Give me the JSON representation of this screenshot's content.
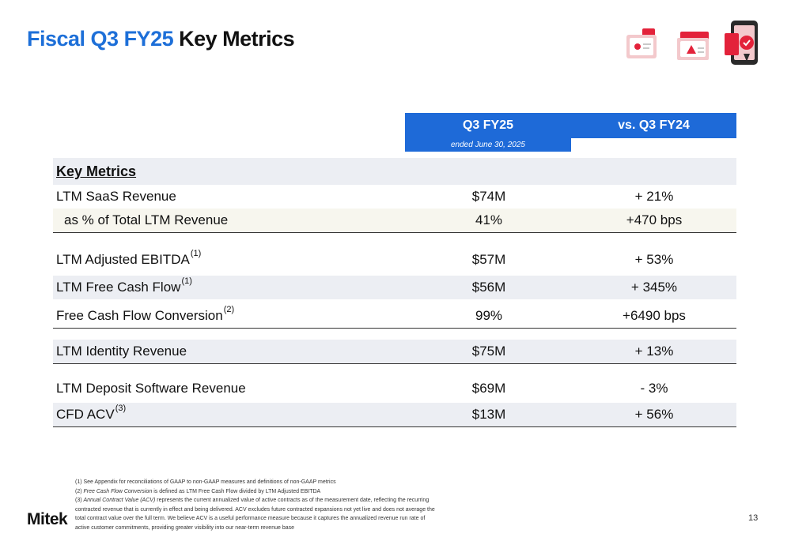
{
  "header": {
    "title_accent": "Fiscal Q3 FY25",
    "title_rest": "Key Metrics",
    "accent_color": "#1d6fd8"
  },
  "icons": [
    "id-card-icon",
    "alert-document-icon",
    "phone-security-icon"
  ],
  "table": {
    "col1_header": "Q3 FY25",
    "col1_subheader": "ended June 30, 2025",
    "col2_header": "vs. Q3 FY24",
    "section_header": "Key Metrics",
    "rows": [
      {
        "label": "LTM SaaS Revenue",
        "sup": "",
        "value": "$74M",
        "change": "+ 21%"
      },
      {
        "label": "  as % of Total LTM Revenue",
        "sup": "",
        "value": "41%",
        "change": "+470 bps"
      },
      {
        "label": "LTM Adjusted EBITDA",
        "sup": "(1)",
        "value": "$57M",
        "change": "+ 53%"
      },
      {
        "label": "LTM Free Cash Flow",
        "sup": "(1)",
        "value": "$56M",
        "change": "+ 345%"
      },
      {
        "label": "Free Cash Flow Conversion",
        "sup": "(2)",
        "value": "99%",
        "change": "+6490 bps"
      },
      {
        "label": "LTM Identity Revenue",
        "sup": "",
        "value": "$75M",
        "change": "+ 13%"
      },
      {
        "label": "LTM Deposit Software Revenue",
        "sup": "",
        "value": "$69M",
        "change": "- 3%"
      },
      {
        "label": "CFD ACV",
        "sup": "(3)",
        "value": "$13M",
        "change": "+ 56%"
      }
    ]
  },
  "footnotes": {
    "f1": "(1) See Appendix for reconciliations of GAAP to non-GAAP measures and definitions of non-GAAP metrics",
    "f2_prefix": "(2) ",
    "f2_italic": "Free Cash Flow Conversion",
    "f2_rest": " is defined as LTM Free Cash Flow divided by LTM Adjusted EBITDA",
    "f3_prefix": "(3) ",
    "f3_italic": "Annual Contract Value (ACV)",
    "f3_rest": " represents the current annualized value of active contracts as of the measurement date, reflecting the recurring contracted revenue that is currently in effect and being delivered. ACV excludes future contracted expansions not yet live and does not average the total contract value over the full term. We believe ACV is a useful performance measure because it captures the annualized revenue run rate of active customer commitments, providing greater visibility into our near-term revenue base"
  },
  "footer": {
    "logo": "Mitek",
    "page_number": "13"
  }
}
